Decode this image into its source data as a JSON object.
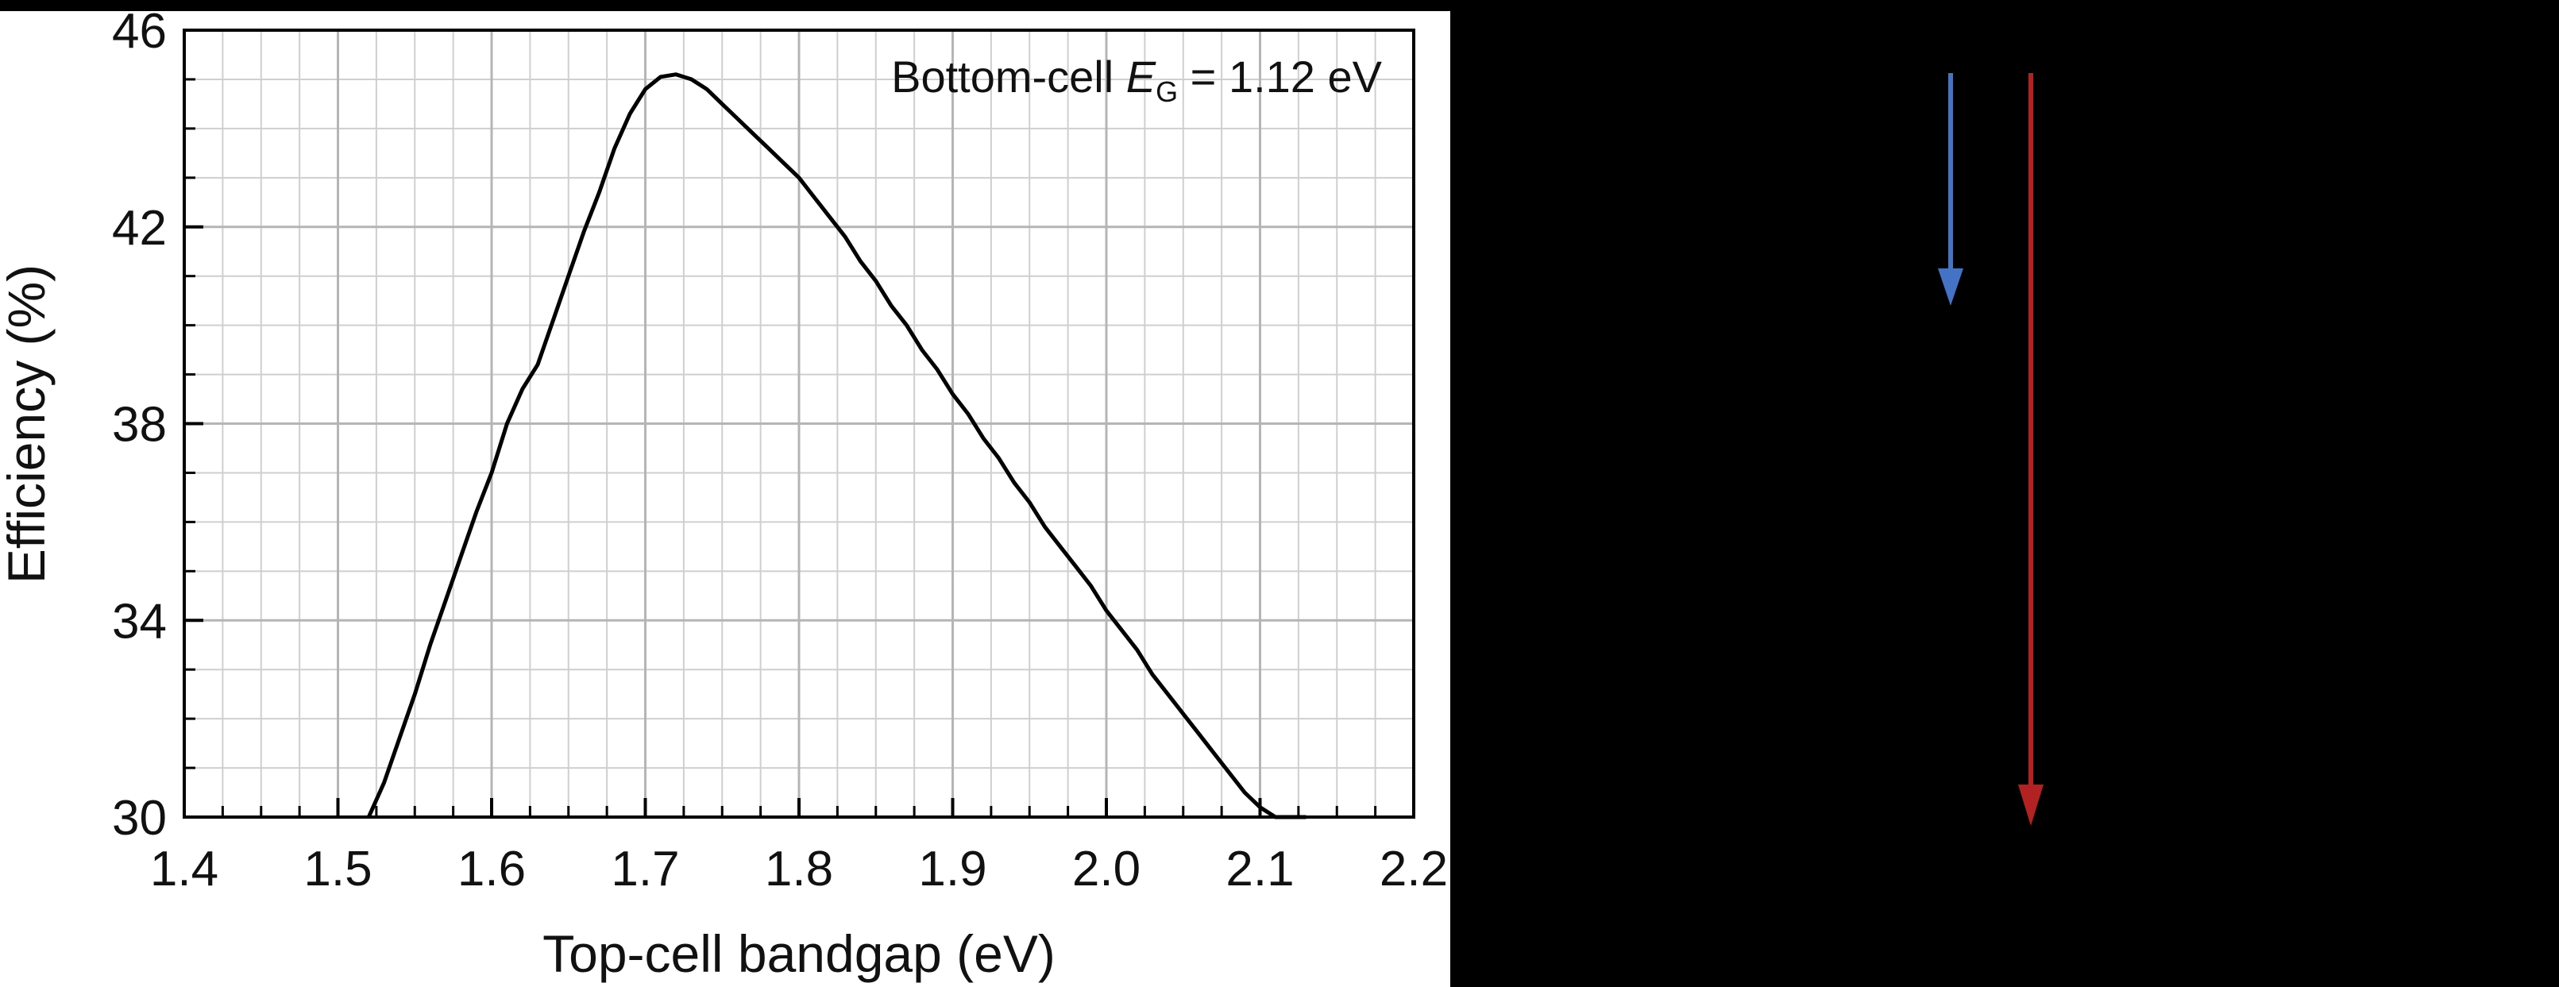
{
  "chart_data": {
    "type": "line",
    "xlabel": "Top-cell bandgap (eV)",
    "ylabel": "Efficiency (%)",
    "xlim": [
      1.4,
      2.2
    ],
    "ylim": [
      30,
      46
    ],
    "x_ticks": [
      "1.4",
      "1.5",
      "1.6",
      "1.7",
      "1.8",
      "1.9",
      "2.0",
      "2.1",
      "2.2"
    ],
    "y_ticks": [
      "30",
      "34",
      "38",
      "42",
      "46"
    ],
    "grid": true,
    "annotation": {
      "prefix": "Bottom-cell ",
      "symbol": "E",
      "subscript": "G",
      "suffix": " = 1.12 eV"
    },
    "series": [
      {
        "color": "#000000",
        "x": [
          1.52,
          1.53,
          1.54,
          1.55,
          1.56,
          1.57,
          1.58,
          1.59,
          1.6,
          1.61,
          1.62,
          1.63,
          1.64,
          1.65,
          1.66,
          1.67,
          1.68,
          1.69,
          1.7,
          1.71,
          1.72,
          1.73,
          1.74,
          1.75,
          1.76,
          1.77,
          1.78,
          1.79,
          1.8,
          1.81,
          1.82,
          1.83,
          1.84,
          1.85,
          1.86,
          1.87,
          1.88,
          1.89,
          1.9,
          1.91,
          1.92,
          1.93,
          1.94,
          1.95,
          1.96,
          1.97,
          1.98,
          1.99,
          2.0,
          2.01,
          2.02,
          2.03,
          2.04,
          2.05,
          2.06,
          2.07,
          2.08,
          2.09,
          2.1,
          2.11,
          2.12,
          2.13
        ],
        "y": [
          30.0,
          30.7,
          31.6,
          32.5,
          33.5,
          34.4,
          35.3,
          36.2,
          37.0,
          38.0,
          38.7,
          39.2,
          40.1,
          41.0,
          41.9,
          42.7,
          43.6,
          44.3,
          44.8,
          45.05,
          45.1,
          45.0,
          44.8,
          44.5,
          44.2,
          43.9,
          43.6,
          43.3,
          43.0,
          42.6,
          42.2,
          41.8,
          41.3,
          40.9,
          40.4,
          40.0,
          39.5,
          39.1,
          38.6,
          38.2,
          37.7,
          37.3,
          36.8,
          36.4,
          35.9,
          35.5,
          35.1,
          34.7,
          34.2,
          33.8,
          33.4,
          32.9,
          32.5,
          32.1,
          31.7,
          31.3,
          30.9,
          30.5,
          30.2,
          30.0,
          29.8,
          29.6
        ]
      }
    ]
  },
  "arrows": [
    {
      "name": "blue-arrow",
      "color": "#4472c4",
      "fraction_of_depth": 0.31
    },
    {
      "name": "red-arrow",
      "color": "#b22222",
      "fraction_of_depth": 1.0
    }
  ]
}
